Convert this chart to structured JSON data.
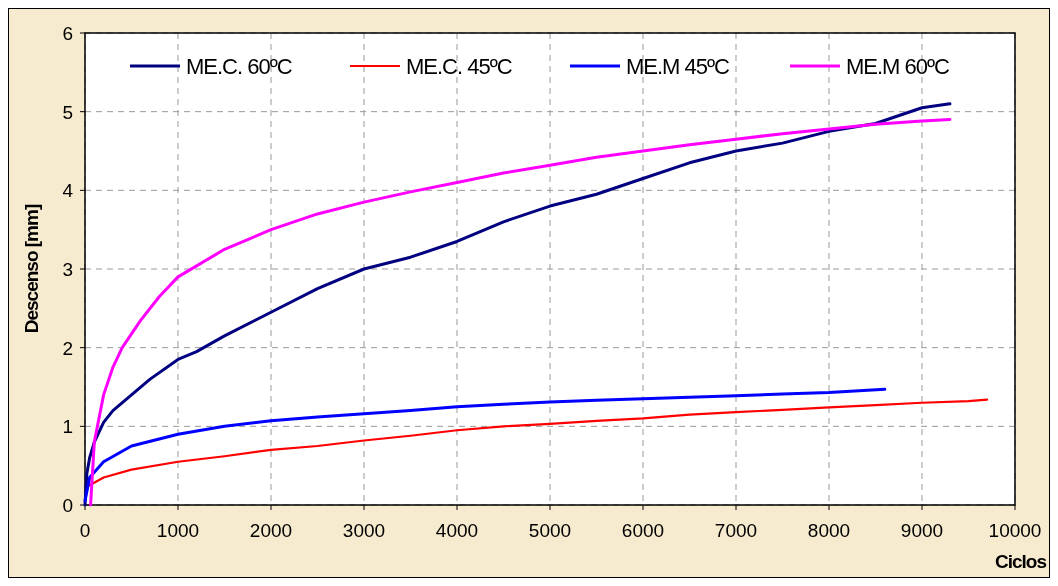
{
  "chart_data": {
    "type": "line",
    "xlabel": "Ciclos",
    "ylabel": "Descenso [mm]",
    "xlim": [
      0,
      10000
    ],
    "xticks": [
      0,
      1000,
      2000,
      3000,
      4000,
      5000,
      6000,
      7000,
      8000,
      9000,
      10000
    ],
    "ylim": [
      0,
      6
    ],
    "yticks": [
      0,
      1,
      2,
      3,
      4,
      5,
      6
    ],
    "grid": true,
    "legend": "top",
    "series": [
      {
        "name": "ME.C. 60ºC",
        "color": "#000080",
        "x": [
          0,
          20,
          50,
          100,
          200,
          300,
          500,
          700,
          1000,
          1200,
          1500,
          2000,
          2500,
          3000,
          3500,
          4000,
          4500,
          5000,
          5500,
          6000,
          6500,
          7000,
          7500,
          8000,
          8500,
          9000,
          9300
        ],
        "values": [
          0,
          0.4,
          0.6,
          0.8,
          1.05,
          1.2,
          1.4,
          1.6,
          1.85,
          1.95,
          2.15,
          2.45,
          2.75,
          3.0,
          3.15,
          3.35,
          3.6,
          3.8,
          3.95,
          4.15,
          4.35,
          4.5,
          4.6,
          4.75,
          4.85,
          5.05,
          5.1
        ]
      },
      {
        "name": "ME.C. 45ºC",
        "color": "#ff0000",
        "x": [
          50,
          200,
          500,
          1000,
          1500,
          2000,
          2500,
          3000,
          3500,
          4000,
          4500,
          5000,
          5500,
          6000,
          6500,
          7000,
          7500,
          8000,
          8500,
          9000,
          9500,
          9700
        ],
        "values": [
          0.25,
          0.35,
          0.45,
          0.55,
          0.62,
          0.7,
          0.75,
          0.82,
          0.88,
          0.95,
          1.0,
          1.03,
          1.07,
          1.1,
          1.15,
          1.18,
          1.21,
          1.24,
          1.27,
          1.3,
          1.32,
          1.34
        ]
      },
      {
        "name": "ME.M 45ºC",
        "color": "#0000ff",
        "x": [
          0,
          50,
          200,
          500,
          1000,
          1500,
          2000,
          2500,
          3000,
          3500,
          4000,
          4500,
          5000,
          5500,
          6000,
          6500,
          7000,
          7500,
          8000,
          8600
        ],
        "values": [
          0.05,
          0.35,
          0.55,
          0.75,
          0.9,
          1.0,
          1.07,
          1.12,
          1.16,
          1.2,
          1.25,
          1.28,
          1.31,
          1.33,
          1.35,
          1.37,
          1.39,
          1.41,
          1.43,
          1.47
        ]
      },
      {
        "name": "ME.M 60ºC",
        "color": "#ff00ff",
        "x": [
          60,
          100,
          200,
          300,
          400,
          600,
          800,
          1000,
          1100,
          1500,
          2000,
          2500,
          3000,
          3500,
          4000,
          4500,
          5000,
          5500,
          6000,
          6500,
          7000,
          7500,
          8000,
          8500,
          9000,
          9300
        ],
        "values": [
          0,
          0.8,
          1.4,
          1.75,
          2.0,
          2.35,
          2.65,
          2.9,
          2.97,
          3.25,
          3.5,
          3.7,
          3.85,
          3.98,
          4.1,
          4.22,
          4.32,
          4.42,
          4.5,
          4.58,
          4.65,
          4.72,
          4.78,
          4.84,
          4.88,
          4.9
        ]
      }
    ]
  }
}
